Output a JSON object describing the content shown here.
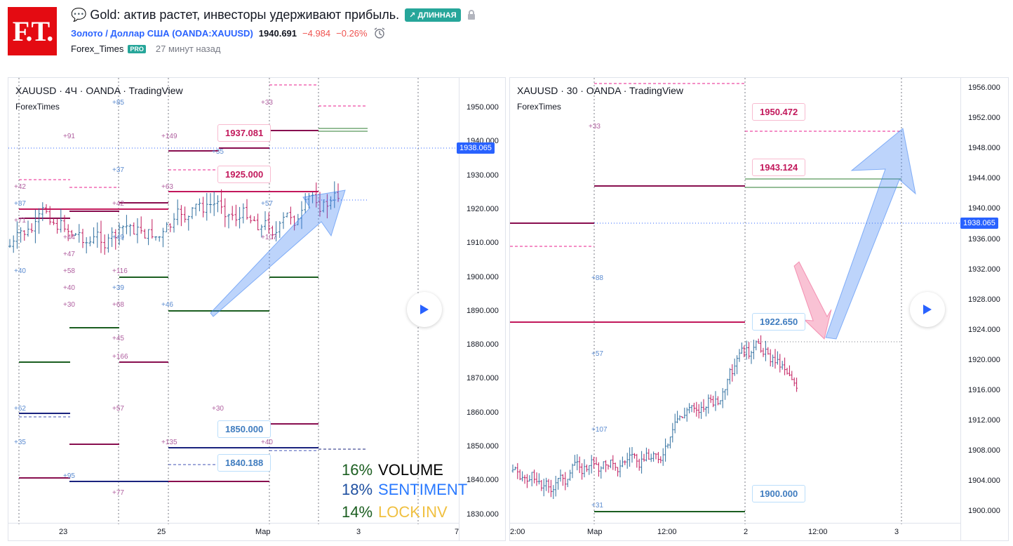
{
  "header": {
    "logo_text": "F.T.",
    "title": "💬 Gold: актив растет, инвесторы удерживают прибыль.",
    "badge": "↗ ДЛИННАЯ",
    "symbol": "Золото / Доллар США (OANDA:XAUUSD)",
    "price": "1940.691",
    "change": "−4.984",
    "change_pct": "−0.26%",
    "author": "Forex_Times",
    "pro": "PRO",
    "time_ago": "27 минут назад"
  },
  "chart1": {
    "title": "XAUUSD · 4Ч · OANDA · TradingView",
    "sub": "ForexTimes",
    "price_ticks": [
      "1950.000",
      "1940.000",
      "1930.000",
      "1920.000",
      "1910.000",
      "1900.000",
      "1890.000",
      "1880.000",
      "1870.000",
      "1860.000",
      "1850.000",
      "1840.000",
      "1830.000"
    ],
    "current_price": "1938.065",
    "x_ticks": [
      "23",
      "25",
      "Мар",
      "3",
      "7"
    ],
    "labels": {
      "l1": "1937.081",
      "l2": "1925.000",
      "l3": "1850.000",
      "l4": "1840.188"
    },
    "tiny_labels": [
      "+85",
      "+91",
      "+149",
      "+37",
      "+42",
      "+63",
      "+87",
      "+71",
      "+42",
      "+49",
      "+44",
      "+47",
      "+57",
      "+107",
      "+58",
      "+40",
      "+116",
      "+40",
      "+39",
      "+30",
      "+68",
      "+46",
      "+45",
      "+166",
      "+62",
      "+57",
      "+30",
      "+35",
      "+135",
      "+40",
      "+95",
      "+77",
      "+33",
      "+35"
    ],
    "stats": [
      {
        "pct": "16%",
        "label": "VOLUME"
      },
      {
        "pct": "18%",
        "label": "SENTIMENT"
      },
      {
        "pct": "14%",
        "label1": "LOCK",
        "label2": "INV"
      }
    ]
  },
  "chart2": {
    "title": "XAUUSD · 30 · OANDA · TradingView",
    "sub": "ForexTimes",
    "price_ticks": [
      "1956.000",
      "1952.000",
      "1948.000",
      "1944.000",
      "1940.000",
      "1936.000",
      "1932.000",
      "1928.000",
      "1924.000",
      "1920.000",
      "1916.000",
      "1912.000",
      "1908.000",
      "1904.000",
      "1900.000"
    ],
    "current_price": "1938.065",
    "x_ticks": [
      "2:00",
      "Мар",
      "12:00",
      "2",
      "12:00",
      "3"
    ],
    "labels": {
      "l1": "1950.472",
      "l2": "1943.124",
      "l3": "1922.650",
      "l4": "1900.000"
    },
    "tiny_labels": [
      "+33",
      "+88",
      "+57",
      "+107",
      "+31"
    ]
  },
  "colors": {
    "accent": "#2962ff",
    "green": "#26a69a",
    "red": "#ef5350",
    "brand": "#e40b12"
  }
}
